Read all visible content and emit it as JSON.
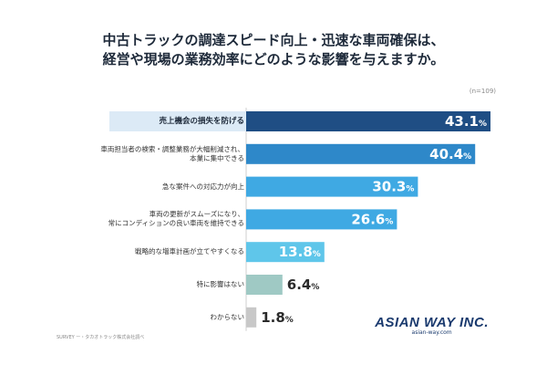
{
  "title": {
    "line1": "中古トラックの調達スピード向上・迅速な車両確保は、",
    "line2": "経営や現場の業務効率にどのような影響を与えますか。"
  },
  "sample_note": "(n=109)",
  "footnote": "SURVEY ー・タカオトラック株式会社調べ",
  "logo": {
    "main": "ASIAN WAY INC.",
    "sub": "asian-way.com"
  },
  "chart_data": {
    "type": "bar",
    "orientation": "horizontal",
    "unit": "%",
    "categories": [
      "売上機会の損失を防げる",
      "車両担当者の検索・調整業務が大幅削減され、\n本業に集中できる",
      "急な案件への対応力が向上",
      "車両の更新がスムーズになり、\n常にコンディションの良い車両を維持できる",
      "戦略的な増車計画が立てやすくなる",
      "特に影響はない",
      "わからない"
    ],
    "values": [
      43.1,
      40.4,
      30.3,
      26.6,
      13.8,
      6.4,
      1.8
    ],
    "value_labels": [
      "43.1",
      "40.4",
      "30.3",
      "26.6",
      "13.8",
      "6.4",
      "1.8"
    ],
    "highlight_index": 0,
    "xlim": [
      0,
      43.1
    ],
    "colors": [
      "#1f4e84",
      "#2e88c9",
      "#3fa9e3",
      "#3fa9e3",
      "#5fc6ea",
      "#9fc9c4",
      "#c8c8c8"
    ],
    "grid": false,
    "legend": "none"
  }
}
